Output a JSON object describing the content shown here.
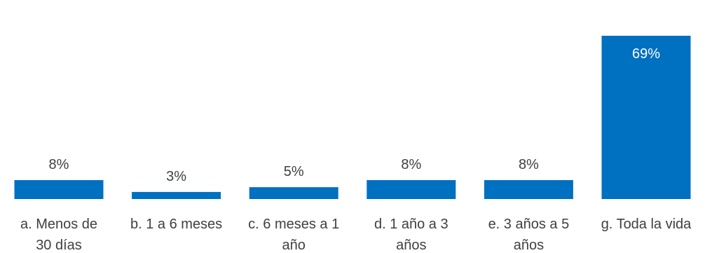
{
  "chart_data": {
    "type": "bar",
    "categories": [
      "a. Menos de 30 días",
      "b. 1 a 6 meses",
      "c. 6 meses a 1 año",
      "d. 1 año a 3 años",
      "e. 3 años a 5 años",
      "g. Toda la vida"
    ],
    "values": [
      8,
      3,
      5,
      8,
      8,
      69
    ],
    "data_labels": [
      "8%",
      "3%",
      "5%",
      "8%",
      "8%",
      "69%"
    ],
    "category_label_lines": [
      [
        "a. Menos de",
        "30 días"
      ],
      [
        "b. 1 a 6 meses"
      ],
      [
        "c. 6 meses a 1",
        "año"
      ],
      [
        "d. 1 año a 3",
        "años"
      ],
      [
        "e. 3 años a 5",
        "años"
      ],
      [
        "g. Toda la vida"
      ]
    ],
    "title": "",
    "xlabel": "",
    "ylabel": "",
    "ylim": [
      0,
      69
    ],
    "grid": false,
    "legend": "none",
    "bar_color": "#0070c0"
  }
}
